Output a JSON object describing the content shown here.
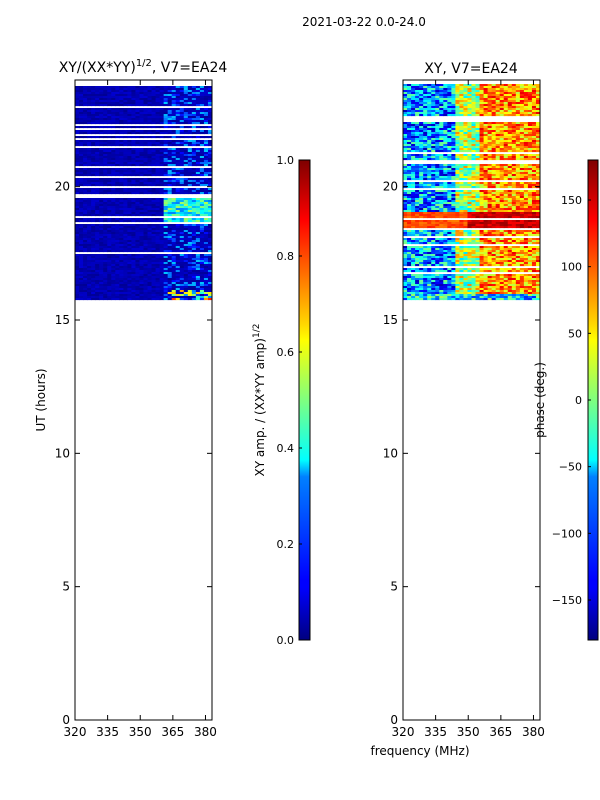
{
  "figure_title": "2021-03-22 0.0-24.0",
  "chart_data": [
    {
      "type": "heatmap",
      "title": "XY/(XX*YY)",
      "title_exp": "1/2",
      "title_tail": ", V7=EA24",
      "xlabel": "",
      "ylabel": "UT (hours)",
      "xlim": [
        320,
        383
      ],
      "ylim": [
        0,
        24
      ],
      "xticks": [
        320,
        335,
        350,
        365,
        380
      ],
      "yticks": [
        0,
        5,
        10,
        15,
        20
      ],
      "data_extent_hours": [
        15.75,
        23.85
      ],
      "colorbar": {
        "label": "XY amp. / (XX*YY amp)",
        "label_exp": "1/2",
        "range": [
          0.0,
          1.0
        ],
        "ticks": [
          "0.0",
          "0.2",
          "0.4",
          "0.6",
          "0.8",
          "1.0"
        ],
        "tick_values": [
          0.0,
          0.2,
          0.4,
          0.6,
          0.8,
          1.0
        ]
      }
    },
    {
      "type": "heatmap",
      "title": "XY, V7=EA24",
      "xlabel": "frequency (MHz)",
      "ylabel": "",
      "xlim": [
        320,
        383
      ],
      "ylim": [
        0,
        24
      ],
      "xticks": [
        320,
        335,
        350,
        365,
        380
      ],
      "yticks": [
        0,
        5,
        10,
        15,
        20
      ],
      "data_extent_hours": [
        15.75,
        23.85
      ],
      "colorbar": {
        "label": "phase (deg.)",
        "range": [
          -180,
          180
        ],
        "ticks": [
          "−150",
          "−100",
          "−50",
          "0",
          "50",
          "100",
          "150"
        ],
        "tick_values": [
          -150,
          -100,
          -50,
          0,
          50,
          100,
          150
        ]
      }
    }
  ]
}
